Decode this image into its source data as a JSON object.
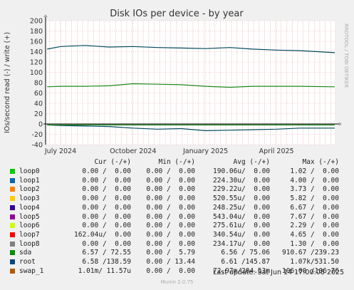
{
  "chart_data": {
    "type": "line",
    "title": "Disk IOs per device - by year",
    "ylabel": "IOs/second read (-) / write (+)",
    "side_label": "RRDTOOL / TOBI OETIKER",
    "ylim": [
      -40,
      200
    ],
    "yticks": [
      -40,
      -20,
      0,
      20,
      40,
      60,
      80,
      100,
      120,
      140,
      160,
      180,
      200
    ],
    "xticks": [
      "July 2024",
      "October 2024",
      "January 2025",
      "April 2025"
    ],
    "grid": true,
    "series": [
      {
        "name": "root",
        "color": "#00495d",
        "x": [
          "2024-06-14",
          "2024-07-01",
          "2024-08-01",
          "2024-09-01",
          "2024-10-01",
          "2024-11-01",
          "2024-12-01",
          "2025-01-01",
          "2025-02-01",
          "2025-03-01",
          "2025-04-01",
          "2025-05-01",
          "2025-06-14"
        ],
        "write": [
          145,
          150,
          152,
          149,
          150,
          148,
          147,
          146,
          148,
          145,
          143,
          142,
          138
        ],
        "read": [
          -2,
          -3,
          -4,
          -5,
          -8,
          -10,
          -9,
          -13,
          -12,
          -11,
          -10,
          -8,
          -8
        ]
      },
      {
        "name": "sda",
        "color": "#1a8a1a",
        "x": [
          "2024-06-14",
          "2024-07-01",
          "2024-08-01",
          "2024-09-01",
          "2024-10-01",
          "2024-11-01",
          "2024-12-01",
          "2025-01-01",
          "2025-02-01",
          "2025-03-01",
          "2025-04-01",
          "2025-05-01",
          "2025-06-14"
        ],
        "write": [
          72,
          73,
          73,
          74,
          78,
          77,
          76,
          73,
          71,
          73,
          73,
          73,
          72
        ],
        "read": [
          -2,
          -2,
          -2,
          -2,
          -2,
          -2,
          -2,
          -2,
          -2,
          -2,
          -2,
          -2,
          -2
        ]
      }
    ]
  },
  "legend": {
    "headers": {
      "cur": "Cur (-/+)",
      "min": "Min (-/+)",
      "avg": "Avg (-/+)",
      "max": "Max (-/+)"
    },
    "rows": [
      {
        "name": "loop0",
        "color": "#00cc00",
        "cur": "0.00 /  0.00",
        "min": "0.00 /  0.00",
        "avg": "190.06u/  0.00",
        "max": "1.02 /  0.00"
      },
      {
        "name": "loop1",
        "color": "#0066b3",
        "cur": "0.00 /  0.00",
        "min": "0.00 /  0.00",
        "avg": "224.30u/  0.00",
        "max": "4.00 /  0.00"
      },
      {
        "name": "loop2",
        "color": "#ff8000",
        "cur": "0.00 /  0.00",
        "min": "0.00 /  0.00",
        "avg": "229.22u/  0.00",
        "max": "3.73 /  0.00"
      },
      {
        "name": "loop3",
        "color": "#ffcc00",
        "cur": "0.00 /  0.00",
        "min": "0.00 /  0.00",
        "avg": "520.55u/  0.00",
        "max": "5.82 /  0.00"
      },
      {
        "name": "loop4",
        "color": "#330099",
        "cur": "0.00 /  0.00",
        "min": "0.00 /  0.00",
        "avg": "248.25u/  0.00",
        "max": "6.67 /  0.00"
      },
      {
        "name": "loop5",
        "color": "#990099",
        "cur": "0.00 /  0.00",
        "min": "0.00 /  0.00",
        "avg": "543.04u/  0.00",
        "max": "7.67 /  0.00"
      },
      {
        "name": "loop6",
        "color": "#ccff00",
        "cur": "0.00 /  0.00",
        "min": "0.00 /  0.00",
        "avg": "275.61u/  0.00",
        "max": "2.29 /  0.00"
      },
      {
        "name": "loop7",
        "color": "#ff0000",
        "cur": "162.04u/  0.00",
        "min": "0.00 /  0.00",
        "avg": "340.54u/  0.00",
        "max": "4.65 /  0.00"
      },
      {
        "name": "loop8",
        "color": "#808080",
        "cur": "0.00 /  0.00",
        "min": "0.00 /  0.00",
        "avg": "234.17u/  0.00",
        "max": "1.30 /  0.00"
      },
      {
        "name": "sda",
        "color": "#008f00",
        "cur": "6.57 / 72.55",
        "min": "0.00 /  5.79",
        "avg": "6.56 / 75.06",
        "max": "910.67 /239.23"
      },
      {
        "name": "root",
        "color": "#00487d",
        "cur": "6.58 /138.59",
        "min": "0.00 / 13.44",
        "avg": "6.61 /145.87",
        "max": "1.07k/531.50"
      },
      {
        "name": "swap_1",
        "color": "#b35a00",
        "cur": "1.01m/ 11.57u",
        "min": "0.00 /  0.00",
        "avg": "72.97m/204.53m",
        "max": "106.00 /106.76"
      }
    ]
  },
  "footer": {
    "last_update": "Last update: Sat Jun 14 17:00:08 2025",
    "version": "Munin 2.0.75"
  }
}
